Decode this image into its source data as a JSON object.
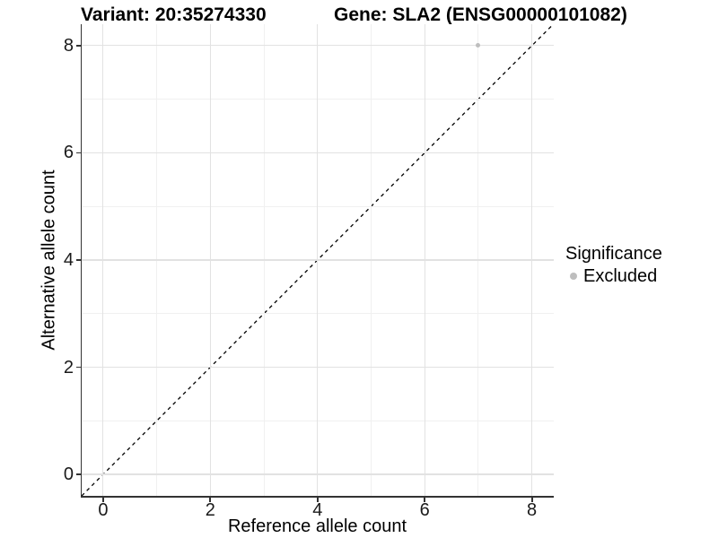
{
  "header": {
    "variant_title": "Variant: 20:35274330",
    "gene_title": "Gene: SLA2 (ENSG00000101082)"
  },
  "chart_data": {
    "type": "scatter",
    "title_left": "Variant: 20:35274330",
    "title_right": "Gene: SLA2 (ENSG00000101082)",
    "xlabel": "Reference allele count",
    "ylabel": "Alternative allele count",
    "xlim": [
      -0.4,
      8.4
    ],
    "ylim": [
      -0.4,
      8.4
    ],
    "x_major_ticks": [
      0,
      2,
      4,
      6,
      8
    ],
    "y_major_ticks": [
      0,
      2,
      4,
      6,
      8
    ],
    "x_minor_ticks": [
      1,
      3,
      5,
      7
    ],
    "y_minor_ticks": [
      1,
      3,
      5,
      7
    ],
    "grid": "major-and-minor",
    "reference_line": {
      "type": "identity y=x",
      "style": "dashed",
      "color": "#000000"
    },
    "series": [
      {
        "name": "Excluded",
        "color": "#bebebe",
        "points": [
          {
            "x": 7,
            "y": 8
          }
        ]
      }
    ],
    "legend": {
      "title": "Significance",
      "position": "right",
      "items": [
        {
          "label": "Excluded",
          "color": "#bebebe"
        }
      ]
    }
  },
  "colors": {
    "background": "#ffffff",
    "grid_major": "#e2e2e2",
    "grid_minor": "#f0f0f0",
    "axis_line": "#333333",
    "tick_text": "#1a1a1a",
    "excluded_point": "#bebebe"
  }
}
